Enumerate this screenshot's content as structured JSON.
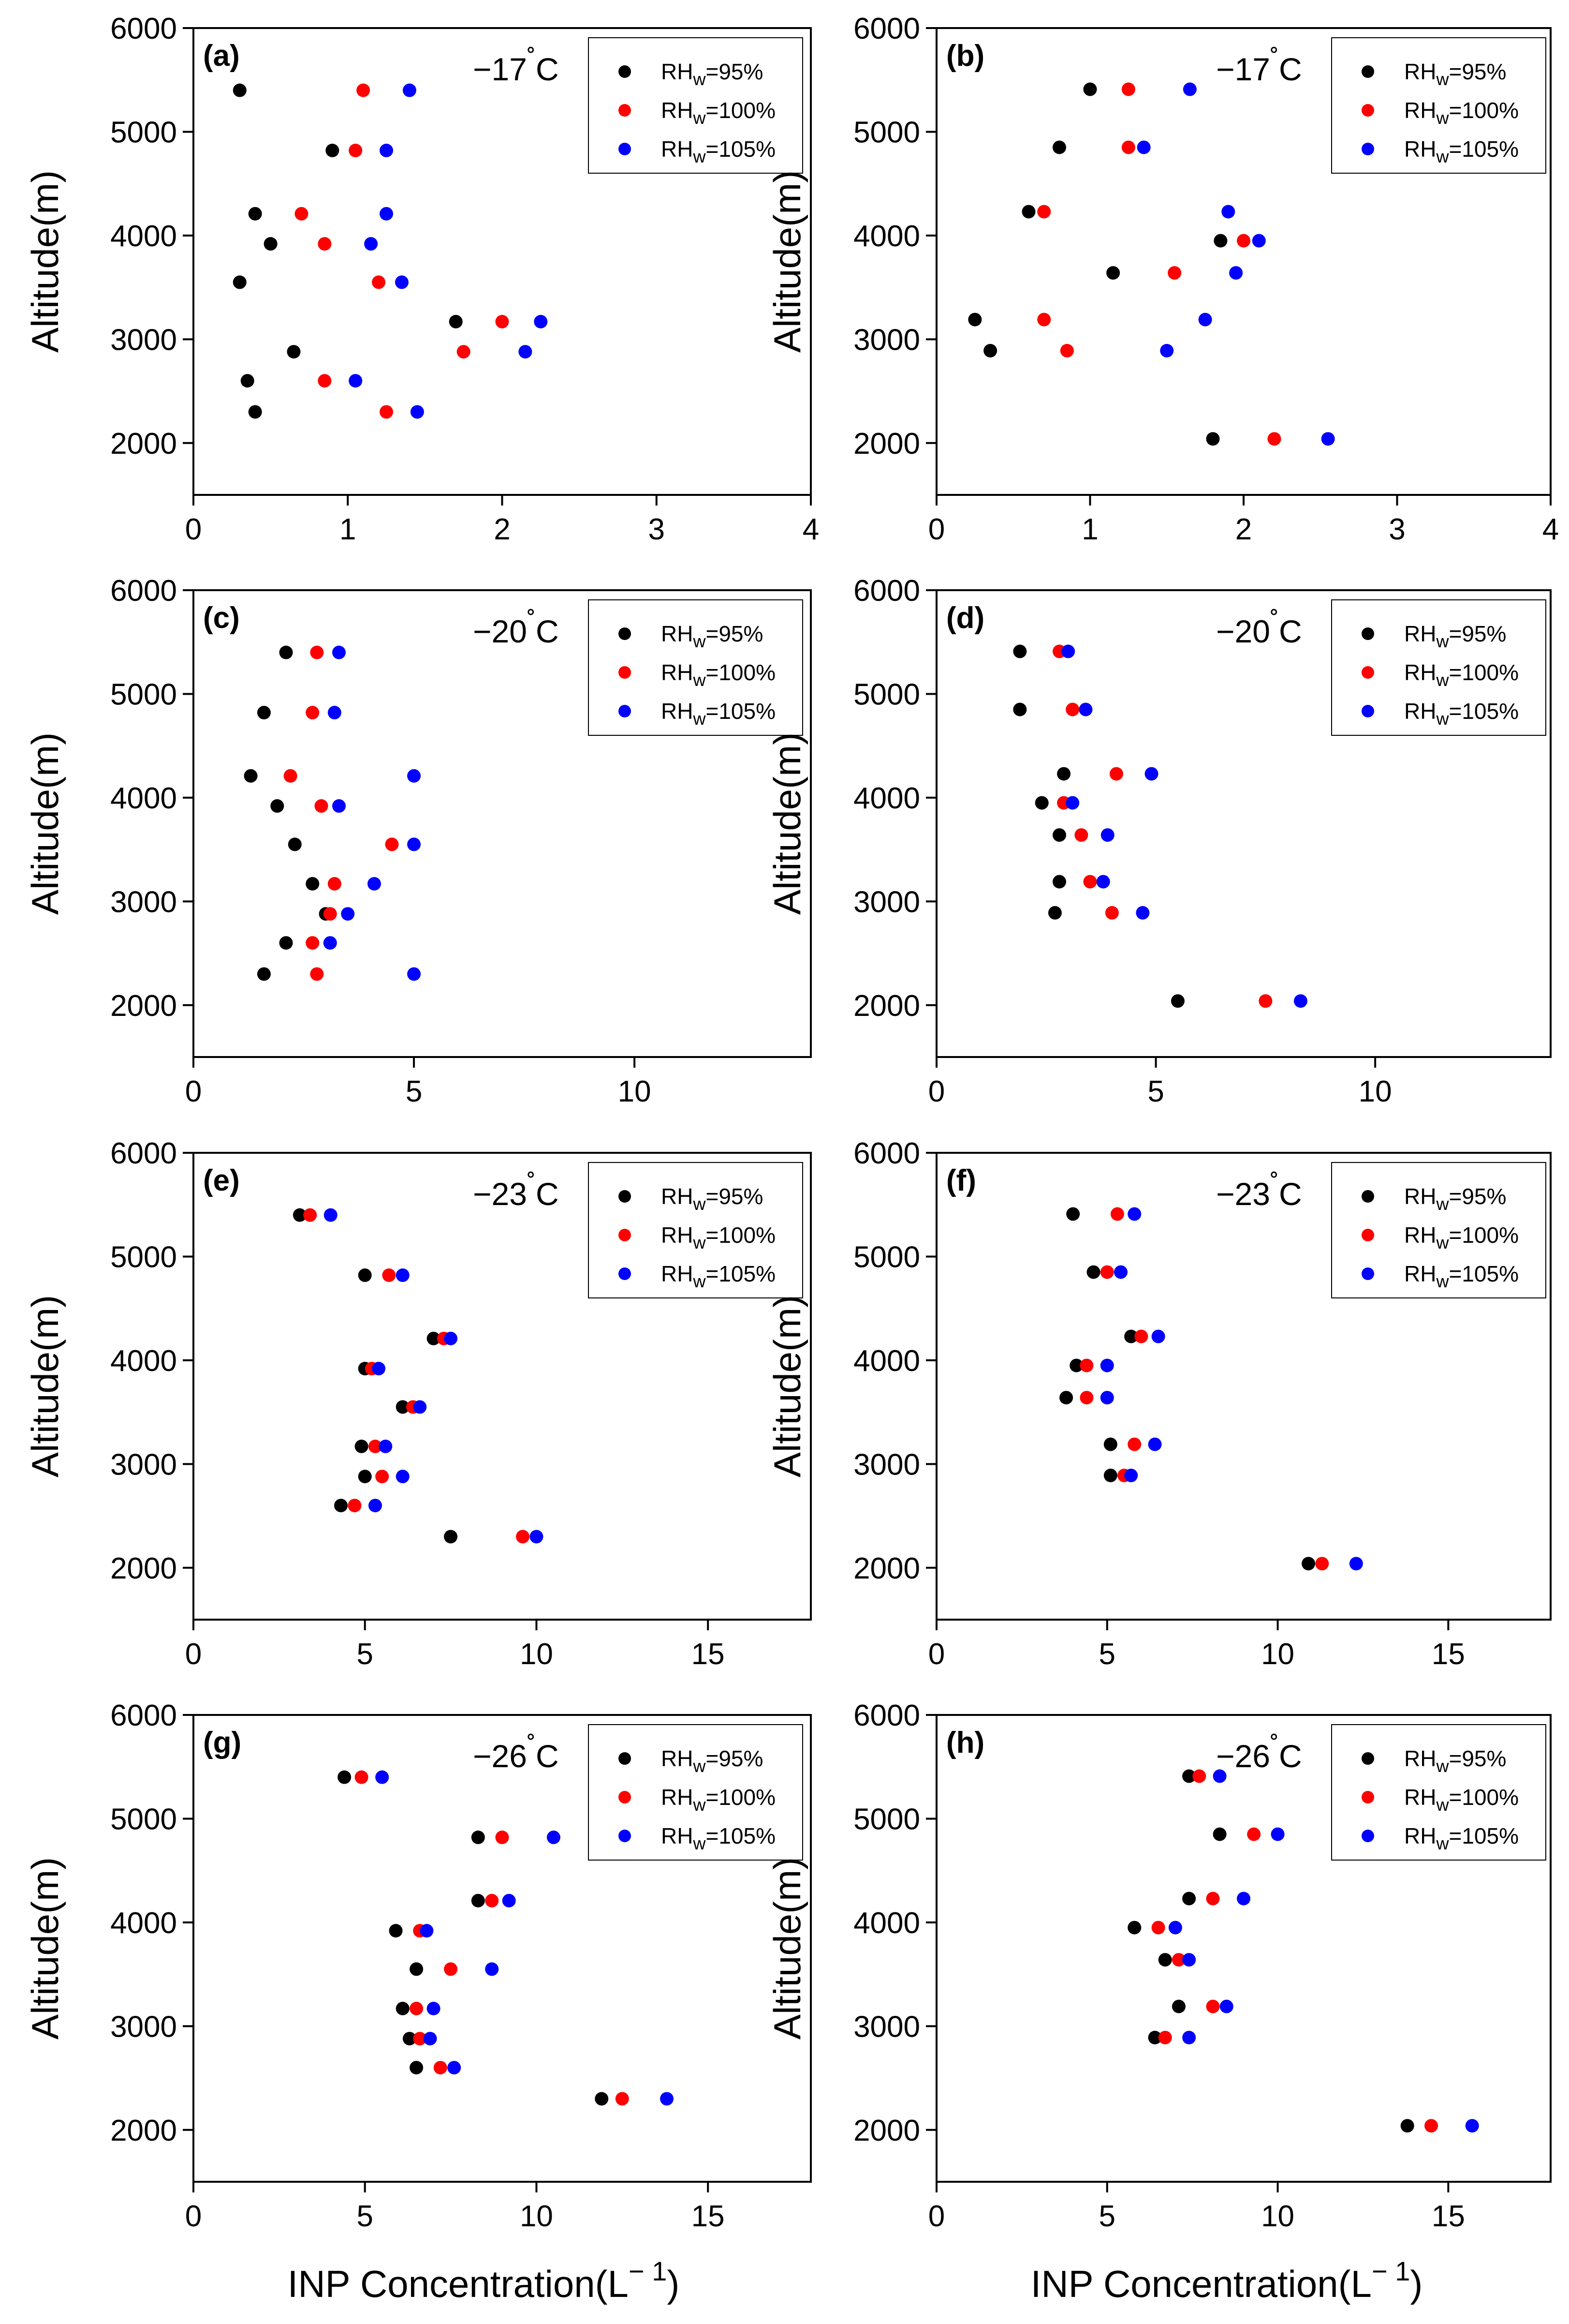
{
  "figure": {
    "x_axis_label": "INP Concentration(L",
    "x_axis_label_sup": "− 1",
    "x_axis_label_close": ")",
    "y_axis_label": "Altitude(m)",
    "legend": [
      {
        "main": "RH",
        "sub": "w",
        "rest": "=95%",
        "color": "#000000"
      },
      {
        "main": "RH",
        "sub": "w",
        "rest": "=100%",
        "color": "#ff0000"
      },
      {
        "main": "RH",
        "sub": "w",
        "rest": "=105%",
        "color": "#0000ff"
      }
    ],
    "degree_symbol": "˚",
    "temp_unit": "C"
  },
  "chart_data": [
    {
      "type": "scatter",
      "panel": "(a)",
      "temperature": "−17",
      "xlim": [
        0,
        4
      ],
      "xticks": [
        0,
        1,
        2,
        3,
        4
      ],
      "ylim": [
        1500,
        6000
      ],
      "yticks": [
        2000,
        3000,
        4000,
        5000,
        6000
      ],
      "altitudes": [
        5400,
        4820,
        4210,
        3920,
        3550,
        3170,
        2880,
        2600,
        2300
      ],
      "series": [
        {
          "name": "RHw=95%",
          "color": "#000000",
          "values": [
            0.3,
            0.9,
            0.4,
            0.5,
            0.3,
            1.7,
            0.65,
            0.35,
            0.4
          ]
        },
        {
          "name": "RHw=100%",
          "color": "#ff0000",
          "values": [
            1.1,
            1.05,
            0.7,
            0.85,
            1.2,
            2.0,
            1.75,
            0.85,
            1.25
          ]
        },
        {
          "name": "RHw=105%",
          "color": "#0000ff",
          "values": [
            1.4,
            1.25,
            1.25,
            1.15,
            1.35,
            2.25,
            2.15,
            1.05,
            1.45
          ]
        }
      ]
    },
    {
      "type": "scatter",
      "panel": "(b)",
      "temperature": "−17",
      "xlim": [
        0,
        4
      ],
      "xticks": [
        0,
        1,
        2,
        3,
        4
      ],
      "ylim": [
        1500,
        6000
      ],
      "yticks": [
        2000,
        3000,
        4000,
        5000,
        6000
      ],
      "altitudes": [
        5410,
        4850,
        4230,
        3950,
        3640,
        3190,
        2890,
        2040
      ],
      "series": [
        {
          "name": "RHw=95%",
          "color": "#000000",
          "values": [
            1.0,
            0.8,
            0.6,
            1.85,
            1.15,
            0.25,
            0.35,
            1.8
          ]
        },
        {
          "name": "RHw=100%",
          "color": "#ff0000",
          "values": [
            1.25,
            1.25,
            0.7,
            2.0,
            1.55,
            0.7,
            0.85,
            2.2
          ]
        },
        {
          "name": "RHw=105%",
          "color": "#0000ff",
          "values": [
            1.65,
            1.35,
            1.9,
            2.1,
            1.95,
            1.75,
            1.5,
            2.55
          ]
        }
      ]
    },
    {
      "type": "scatter",
      "panel": "(c)",
      "temperature": "−20",
      "xlim": [
        0,
        14
      ],
      "xticks": [
        0,
        5,
        10
      ],
      "ylim": [
        1500,
        6000
      ],
      "yticks": [
        2000,
        3000,
        4000,
        5000,
        6000
      ],
      "altitudes": [
        5400,
        4820,
        4210,
        3920,
        3550,
        3170,
        2880,
        2600,
        2300
      ],
      "series": [
        {
          "name": "RHw=95%",
          "color": "#000000",
          "values": [
            2.1,
            1.6,
            1.3,
            1.9,
            2.3,
            2.7,
            3.0,
            2.1,
            1.6
          ]
        },
        {
          "name": "RHw=100%",
          "color": "#ff0000",
          "values": [
            2.8,
            2.7,
            2.2,
            2.9,
            4.5,
            3.2,
            3.1,
            2.7,
            2.8
          ]
        },
        {
          "name": "RHw=105%",
          "color": "#0000ff",
          "values": [
            3.3,
            3.2,
            5.0,
            3.3,
            5.0,
            4.1,
            3.5,
            3.1,
            5.0
          ]
        }
      ]
    },
    {
      "type": "scatter",
      "panel": "(d)",
      "temperature": "−20",
      "xlim": [
        0,
        14
      ],
      "xticks": [
        0,
        5,
        10
      ],
      "ylim": [
        1500,
        6000
      ],
      "yticks": [
        2000,
        3000,
        4000,
        5000,
        6000
      ],
      "altitudes": [
        5410,
        4850,
        4230,
        3950,
        3640,
        3190,
        2890,
        2040
      ],
      "series": [
        {
          "name": "RHw=95%",
          "color": "#000000",
          "values": [
            1.9,
            1.9,
            2.9,
            2.4,
            2.8,
            2.8,
            2.7,
            5.5
          ]
        },
        {
          "name": "RHw=100%",
          "color": "#ff0000",
          "values": [
            2.8,
            3.1,
            4.1,
            2.9,
            3.3,
            3.5,
            4.0,
            7.5
          ]
        },
        {
          "name": "RHw=105%",
          "color": "#0000ff",
          "values": [
            3.0,
            3.4,
            4.9,
            3.1,
            3.9,
            3.8,
            4.7,
            8.3
          ]
        }
      ]
    },
    {
      "type": "scatter",
      "panel": "(e)",
      "temperature": "−23",
      "xlim": [
        0,
        18
      ],
      "xticks": [
        0,
        5,
        10,
        15
      ],
      "ylim": [
        1500,
        6000
      ],
      "yticks": [
        2000,
        3000,
        4000,
        5000,
        6000
      ],
      "altitudes": [
        5400,
        4820,
        4210,
        3920,
        3550,
        3170,
        2880,
        2600,
        2300
      ],
      "series": [
        {
          "name": "RHw=95%",
          "color": "#000000",
          "values": [
            3.1,
            5.0,
            7.0,
            5.0,
            6.1,
            4.9,
            5.0,
            4.3,
            7.5
          ]
        },
        {
          "name": "RHw=100%",
          "color": "#ff0000",
          "values": [
            3.4,
            5.7,
            7.3,
            5.2,
            6.4,
            5.3,
            5.5,
            4.7,
            9.6
          ]
        },
        {
          "name": "RHw=105%",
          "color": "#0000ff",
          "values": [
            4.0,
            6.1,
            7.5,
            5.4,
            6.6,
            5.6,
            6.1,
            5.3,
            10.0
          ]
        }
      ]
    },
    {
      "type": "scatter",
      "panel": "(f)",
      "temperature": "−23",
      "xlim": [
        0,
        18
      ],
      "xticks": [
        0,
        5,
        10,
        15
      ],
      "ylim": [
        1500,
        6000
      ],
      "yticks": [
        2000,
        3000,
        4000,
        5000,
        6000
      ],
      "altitudes": [
        5410,
        4850,
        4230,
        3950,
        3640,
        3190,
        2890,
        2040
      ],
      "series": [
        {
          "name": "RHw=95%",
          "color": "#000000",
          "values": [
            4.0,
            4.6,
            5.7,
            4.1,
            3.8,
            5.1,
            5.1,
            10.9
          ]
        },
        {
          "name": "RHw=100%",
          "color": "#ff0000",
          "values": [
            5.3,
            5.0,
            6.0,
            4.4,
            4.4,
            5.8,
            5.5,
            11.3
          ]
        },
        {
          "name": "RHw=105%",
          "color": "#0000ff",
          "values": [
            5.8,
            5.4,
            6.5,
            5.0,
            5.0,
            6.4,
            5.7,
            12.3
          ]
        }
      ]
    },
    {
      "type": "scatter",
      "panel": "(g)",
      "temperature": "−26",
      "xlim": [
        0,
        18
      ],
      "xticks": [
        0,
        5,
        10,
        15
      ],
      "ylim": [
        1500,
        6000
      ],
      "yticks": [
        2000,
        3000,
        4000,
        5000,
        6000
      ],
      "altitudes": [
        5400,
        4820,
        4210,
        3920,
        3550,
        3170,
        2880,
        2600,
        2300
      ],
      "series": [
        {
          "name": "RHw=95%",
          "color": "#000000",
          "values": [
            4.4,
            8.3,
            8.3,
            5.9,
            6.5,
            6.1,
            6.3,
            6.5,
            11.9
          ]
        },
        {
          "name": "RHw=100%",
          "color": "#ff0000",
          "values": [
            4.9,
            9.0,
            8.7,
            6.6,
            7.5,
            6.5,
            6.6,
            7.2,
            12.5
          ]
        },
        {
          "name": "RHw=105%",
          "color": "#0000ff",
          "values": [
            5.5,
            10.5,
            9.2,
            6.8,
            8.7,
            7.0,
            6.9,
            7.6,
            13.8
          ]
        }
      ]
    },
    {
      "type": "scatter",
      "panel": "(h)",
      "temperature": "−26",
      "xlim": [
        0,
        18
      ],
      "xticks": [
        0,
        5,
        10,
        15
      ],
      "ylim": [
        1500,
        6000
      ],
      "yticks": [
        2000,
        3000,
        4000,
        5000,
        6000
      ],
      "altitudes": [
        5410,
        4850,
        4230,
        3950,
        3640,
        3190,
        2890,
        2040
      ],
      "series": [
        {
          "name": "RHw=95%",
          "color": "#000000",
          "values": [
            7.4,
            8.3,
            7.4,
            5.8,
            6.7,
            7.1,
            6.4,
            13.8
          ]
        },
        {
          "name": "RHw=100%",
          "color": "#ff0000",
          "values": [
            7.7,
            9.3,
            8.1,
            6.5,
            7.1,
            8.1,
            6.7,
            14.5
          ]
        },
        {
          "name": "RHw=105%",
          "color": "#0000ff",
          "values": [
            8.3,
            10.0,
            9.0,
            7.0,
            7.4,
            8.5,
            7.4,
            15.7
          ]
        }
      ]
    }
  ]
}
